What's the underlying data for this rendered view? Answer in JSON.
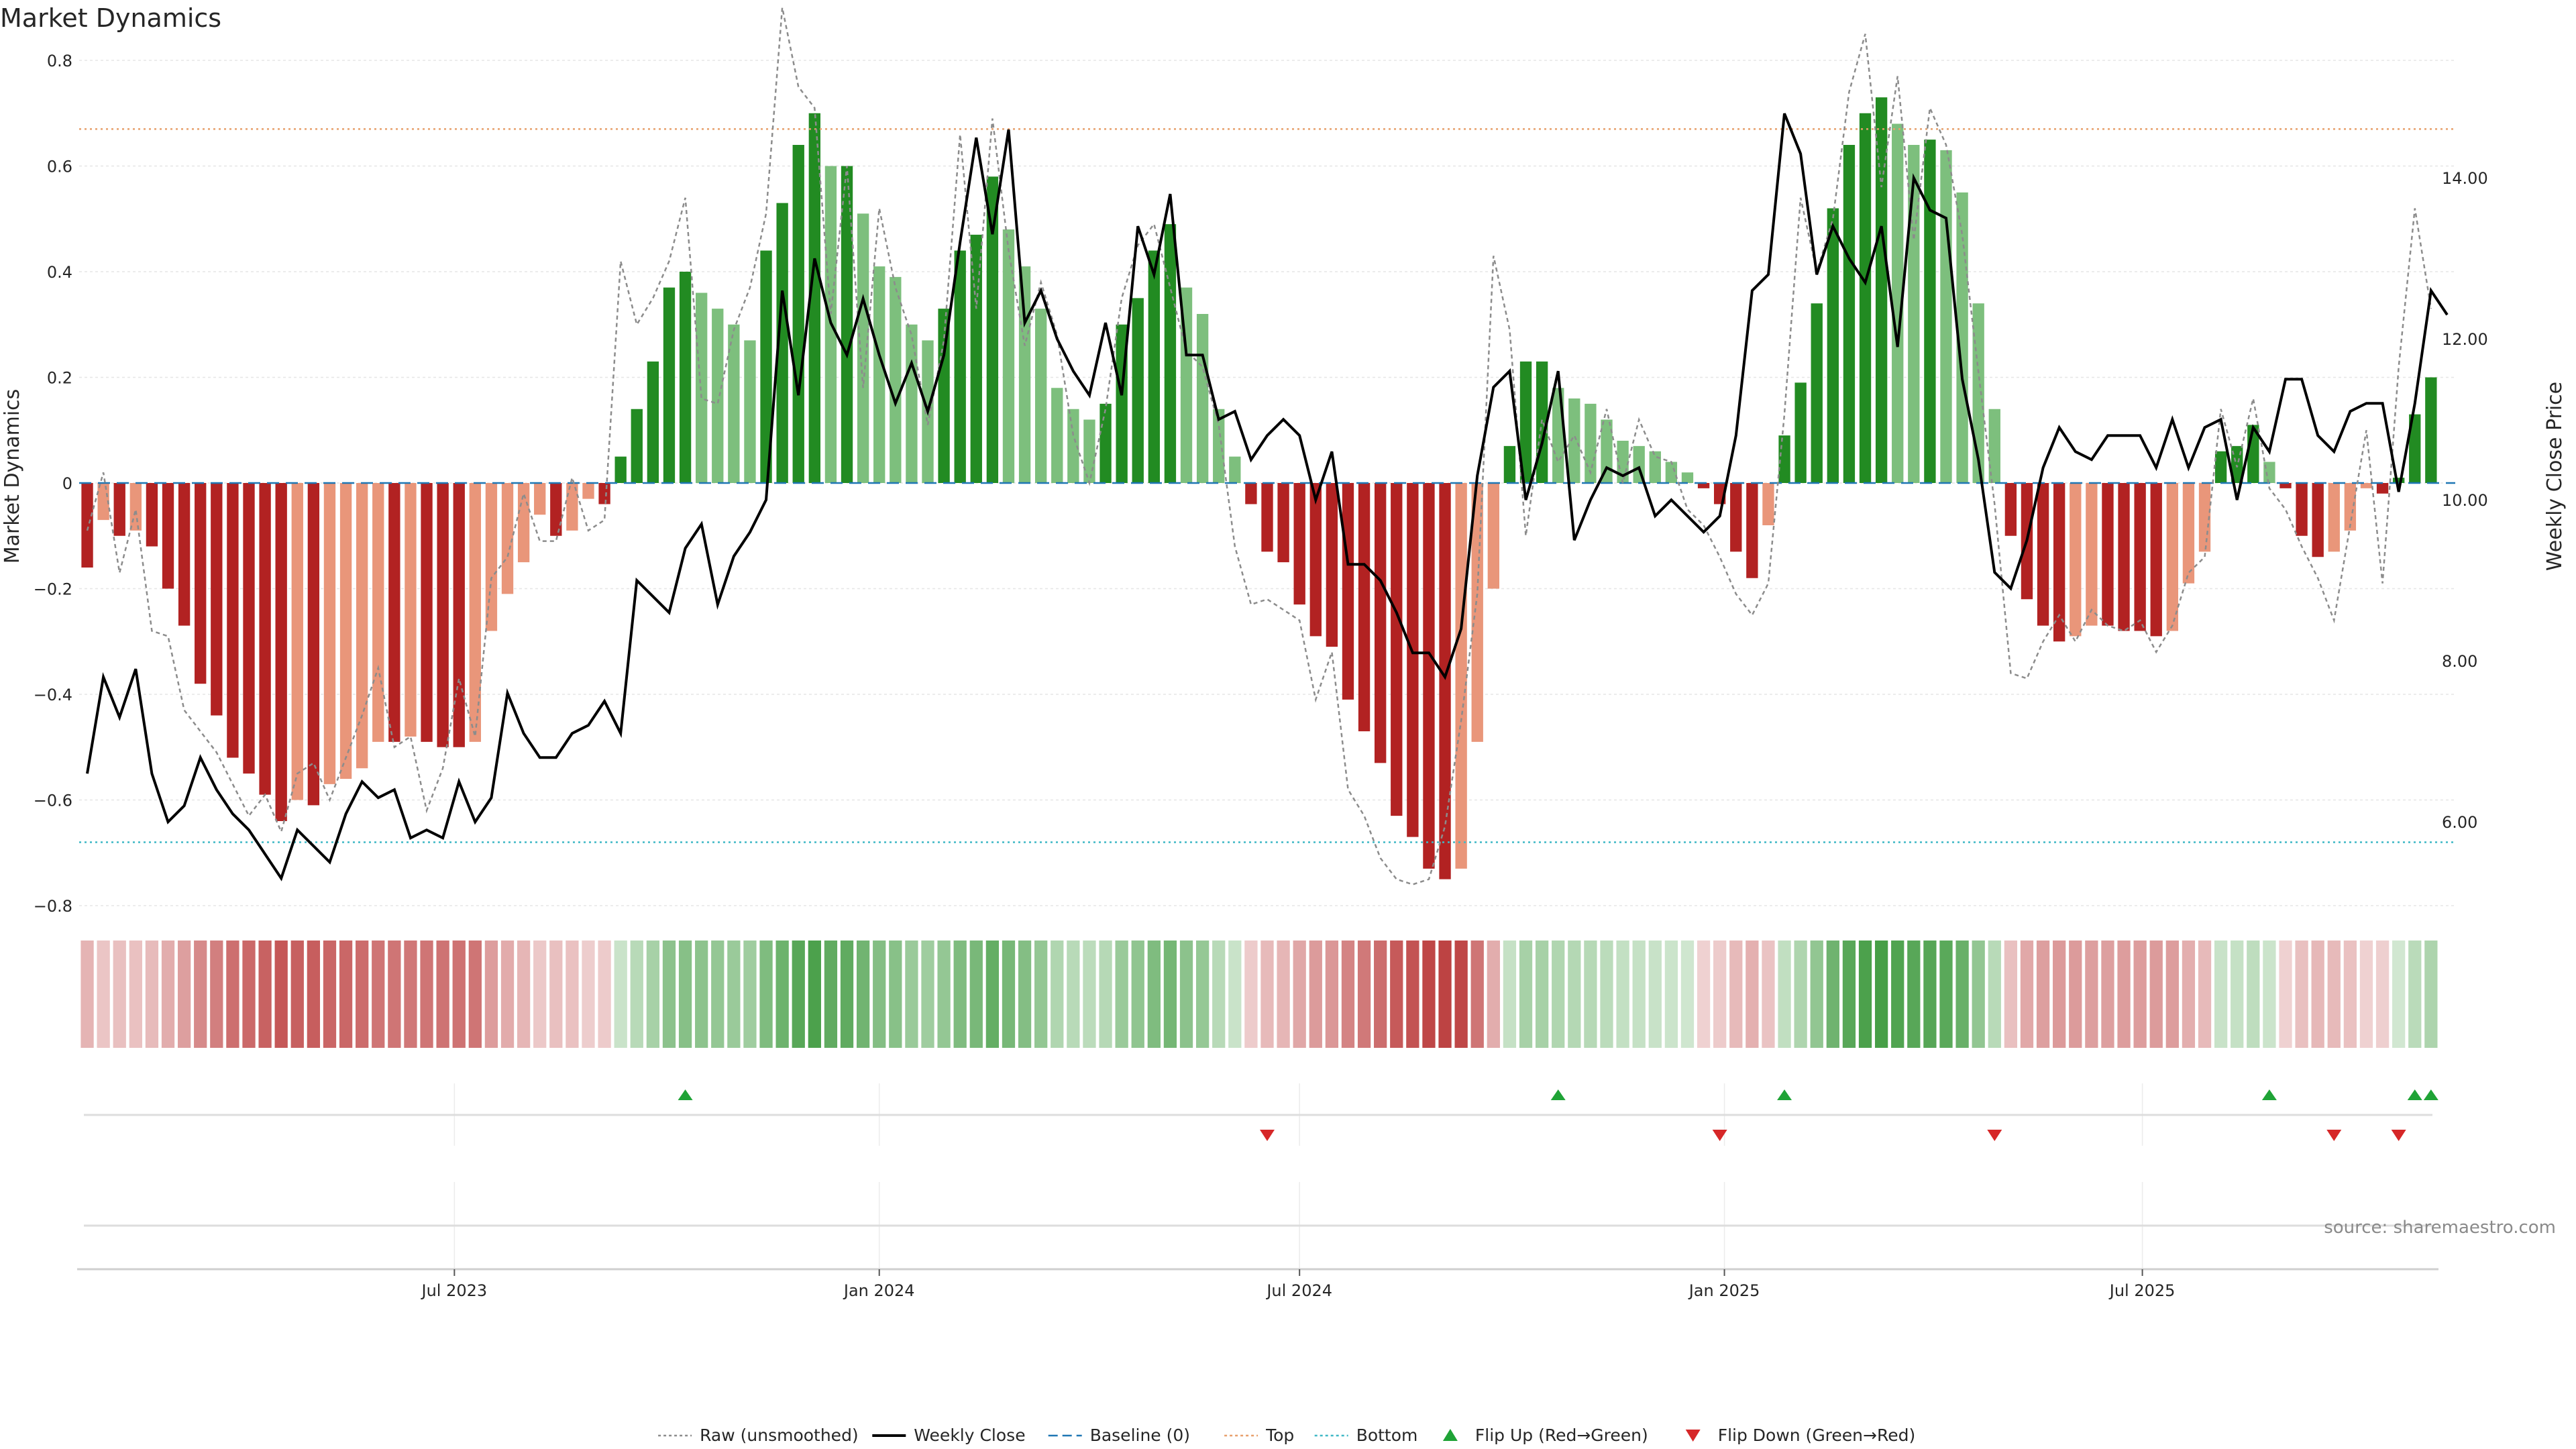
{
  "chart_data": {
    "type": "bar",
    "title": "Market Dynamics",
    "ylabel_left": "Market Dynamics",
    "ylabel_right": "Weekly Close Price",
    "source": "source: sharemaestro.com",
    "ylim_left": [
      -0.8,
      0.8
    ],
    "yticks_left": [
      0.8,
      0.6,
      0.4,
      0.2,
      0,
      -0.2,
      -0.4,
      -0.6,
      -0.8
    ],
    "ytick_labels_left": [
      "0.8",
      "0.6",
      "0.4",
      "0.2",
      "0",
      "−0.2",
      "−0.4",
      "−0.6",
      "−0.8"
    ],
    "ylim_right": [
      4.96,
      15.46
    ],
    "yticks_right": [
      6,
      8,
      10,
      12,
      14
    ],
    "ytick_labels_right": [
      "6.00",
      "8.00",
      "10.00",
      "12.00",
      "14.00"
    ],
    "x_dates": [
      "2023-01-23",
      "2023-01-30",
      "2023-02-06",
      "2023-02-13",
      "2023-02-20",
      "2023-02-27",
      "2023-03-06",
      "2023-03-13",
      "2023-03-20",
      "2023-03-27",
      "2023-04-03",
      "2023-04-10",
      "2023-04-17",
      "2023-04-24",
      "2023-05-01",
      "2023-05-08",
      "2023-05-15",
      "2023-05-22",
      "2023-05-29",
      "2023-06-05",
      "2023-06-12",
      "2023-06-19",
      "2023-06-26",
      "2023-07-03",
      "2023-07-10",
      "2023-07-17",
      "2023-07-24",
      "2023-07-31",
      "2023-08-07",
      "2023-08-14",
      "2023-08-21",
      "2023-08-28",
      "2023-09-04",
      "2023-09-11",
      "2023-09-18",
      "2023-09-25",
      "2023-10-02",
      "2023-10-09",
      "2023-10-16",
      "2023-10-23",
      "2023-10-30",
      "2023-11-06",
      "2023-11-13",
      "2023-11-20",
      "2023-11-27",
      "2023-12-04",
      "2023-12-11",
      "2023-12-18",
      "2023-12-25",
      "2024-01-01",
      "2024-01-08",
      "2024-01-15",
      "2024-01-22",
      "2024-01-29",
      "2024-02-05",
      "2024-02-12",
      "2024-02-19",
      "2024-02-26",
      "2024-03-04",
      "2024-03-11",
      "2024-03-18",
      "2024-03-25",
      "2024-04-01",
      "2024-04-08",
      "2024-04-15",
      "2024-04-22",
      "2024-04-29",
      "2024-05-06",
      "2024-05-13",
      "2024-05-20",
      "2024-05-27",
      "2024-06-03",
      "2024-06-10",
      "2024-06-17",
      "2024-06-24",
      "2024-07-01",
      "2024-07-08",
      "2024-07-15",
      "2024-07-22",
      "2024-07-29",
      "2024-08-05",
      "2024-08-12",
      "2024-08-19",
      "2024-08-26",
      "2024-09-02",
      "2024-09-09",
      "2024-09-16",
      "2024-09-23",
      "2024-09-30",
      "2024-10-07",
      "2024-10-14",
      "2024-10-21",
      "2024-10-28",
      "2024-11-04",
      "2024-11-11",
      "2024-11-18",
      "2024-11-25",
      "2024-12-02",
      "2024-12-09",
      "2024-12-16",
      "2024-12-23",
      "2024-12-30",
      "2025-01-06",
      "2025-01-13",
      "2025-01-20",
      "2025-01-27",
      "2025-02-03",
      "2025-02-10",
      "2025-02-17",
      "2025-02-24",
      "2025-03-03",
      "2025-03-10",
      "2025-03-17",
      "2025-03-24",
      "2025-03-31",
      "2025-04-07",
      "2025-04-14",
      "2025-04-21",
      "2025-04-28",
      "2025-05-05",
      "2025-05-12",
      "2025-05-19",
      "2025-05-26",
      "2025-06-02",
      "2025-06-09",
      "2025-06-16",
      "2025-06-23",
      "2025-06-30",
      "2025-07-07",
      "2025-07-14",
      "2025-07-21",
      "2025-07-28",
      "2025-08-04",
      "2025-08-11",
      "2025-08-18",
      "2025-08-25",
      "2025-09-01",
      "2025-09-08",
      "2025-09-15",
      "2025-09-22",
      "2025-09-29",
      "2025-10-06",
      "2025-10-13",
      "2025-10-20",
      "2025-10-27",
      "2025-11-03",
      "2025-11-10"
    ],
    "x_ticks": [
      {
        "date": "2023-07-01",
        "label": "Jul 2023"
      },
      {
        "date": "2024-01-01",
        "label": "Jan 2024"
      },
      {
        "date": "2024-07-01",
        "label": "Jul 2024"
      },
      {
        "date": "2025-01-01",
        "label": "Jan 2025"
      },
      {
        "date": "2025-07-01",
        "label": "Jul 2025"
      }
    ],
    "series": [
      {
        "name": "Market Dynamics",
        "kind": "bar",
        "values": [
          -0.16,
          -0.07,
          -0.1,
          -0.09,
          -0.12,
          -0.2,
          -0.27,
          -0.38,
          -0.44,
          -0.52,
          -0.55,
          -0.59,
          -0.64,
          -0.6,
          -0.61,
          -0.57,
          -0.56,
          -0.54,
          -0.49,
          -0.49,
          -0.48,
          -0.49,
          -0.5,
          -0.5,
          -0.49,
          -0.28,
          -0.21,
          -0.15,
          -0.06,
          -0.1,
          -0.09,
          -0.03,
          -0.04,
          0.05,
          0.14,
          0.23,
          0.37,
          0.4,
          0.36,
          0.33,
          0.3,
          0.27,
          0.44,
          0.53,
          0.64,
          0.7,
          0.6,
          0.6,
          0.51,
          0.41,
          0.39,
          0.3,
          0.27,
          0.33,
          0.44,
          0.47,
          0.58,
          0.48,
          0.41,
          0.33,
          0.18,
          0.14,
          0.12,
          0.15,
          0.3,
          0.35,
          0.44,
          0.49,
          0.37,
          0.32,
          0.14,
          0.05,
          -0.04,
          -0.13,
          -0.15,
          -0.23,
          -0.29,
          -0.31,
          -0.41,
          -0.47,
          -0.53,
          -0.63,
          -0.67,
          -0.73,
          -0.75,
          -0.73,
          -0.49,
          -0.2,
          0.07,
          0.23,
          0.23,
          0.18,
          0.16,
          0.15,
          0.12,
          0.08,
          0.07,
          0.06,
          0.04,
          0.02,
          -0.01,
          -0.04,
          -0.13,
          -0.18,
          -0.08,
          0.09,
          0.19,
          0.34,
          0.52,
          0.64,
          0.7,
          0.73,
          0.68,
          0.64,
          0.65,
          0.63,
          0.55,
          0.34,
          0.14,
          -0.1,
          -0.22,
          -0.27,
          -0.3,
          -0.29,
          -0.27,
          -0.27,
          -0.28,
          -0.28,
          -0.29,
          -0.28,
          -0.19,
          -0.13,
          0.06,
          0.07,
          0.11,
          0.04,
          -0.01,
          -0.1,
          -0.14,
          -0.13,
          -0.09,
          -0.01,
          -0.02,
          0.01,
          0.13,
          0.2
        ]
      },
      {
        "name": "Raw (unsmoothed)",
        "kind": "line",
        "values": [
          -0.09,
          0.02,
          -0.17,
          -0.05,
          -0.28,
          -0.29,
          -0.43,
          -0.47,
          -0.51,
          -0.57,
          -0.63,
          -0.59,
          -0.66,
          -0.55,
          -0.53,
          -0.6,
          -0.52,
          -0.44,
          -0.35,
          -0.5,
          -0.48,
          -0.62,
          -0.54,
          -0.37,
          -0.48,
          -0.18,
          -0.14,
          -0.02,
          -0.11,
          -0.11,
          0.01,
          -0.09,
          -0.07,
          0.42,
          0.3,
          0.35,
          0.42,
          0.54,
          0.16,
          0.15,
          0.29,
          0.37,
          0.51,
          0.9,
          0.75,
          0.71,
          0.32,
          0.6,
          0.18,
          0.52,
          0.37,
          0.28,
          0.11,
          0.27,
          0.66,
          0.33,
          0.69,
          0.44,
          0.26,
          0.38,
          0.28,
          0.09,
          0.0,
          0.14,
          0.35,
          0.45,
          0.49,
          0.37,
          0.25,
          0.22,
          0.11,
          -0.12,
          -0.23,
          -0.22,
          -0.24,
          -0.26,
          -0.41,
          -0.32,
          -0.58,
          -0.63,
          -0.71,
          -0.75,
          -0.76,
          -0.75,
          -0.65,
          -0.45,
          -0.21,
          0.43,
          0.29,
          -0.1,
          0.12,
          0.04,
          0.09,
          0.02,
          0.14,
          0.0,
          0.12,
          0.05,
          0.04,
          -0.05,
          -0.08,
          -0.14,
          -0.21,
          -0.25,
          -0.19,
          0.13,
          0.54,
          0.4,
          0.5,
          0.74,
          0.85,
          0.56,
          0.77,
          0.46,
          0.71,
          0.64,
          0.47,
          0.21,
          -0.04,
          -0.36,
          -0.37,
          -0.3,
          -0.25,
          -0.3,
          -0.24,
          -0.27,
          -0.28,
          -0.26,
          -0.32,
          -0.27,
          -0.17,
          -0.14,
          0.14,
          0.03,
          0.16,
          -0.01,
          -0.05,
          -0.12,
          -0.18,
          -0.26,
          -0.08,
          0.1,
          -0.19,
          0.22,
          0.52,
          0.33
        ]
      },
      {
        "name": "Weekly Close",
        "kind": "line",
        "axis": "right",
        "values": [
          6.6,
          7.8,
          7.3,
          7.9,
          6.6,
          6.0,
          6.2,
          6.8,
          6.4,
          6.1,
          5.9,
          5.6,
          5.3,
          5.9,
          5.7,
          5.5,
          6.1,
          6.5,
          6.3,
          6.4,
          5.8,
          5.9,
          5.8,
          6.5,
          6.0,
          6.3,
          7.6,
          7.1,
          6.8,
          6.8,
          7.1,
          7.2,
          7.5,
          7.1,
          9.0,
          8.8,
          8.6,
          9.4,
          9.7,
          8.7,
          9.3,
          9.6,
          10.0,
          12.6,
          11.3,
          13.0,
          12.2,
          11.8,
          12.5,
          11.8,
          11.2,
          11.7,
          11.1,
          11.8,
          13.2,
          14.5,
          13.3,
          14.6,
          12.2,
          12.6,
          12.0,
          11.6,
          11.3,
          12.2,
          11.3,
          13.4,
          12.8,
          13.8,
          11.8,
          11.8,
          11.0,
          11.1,
          10.5,
          10.8,
          11.0,
          10.8,
          10.0,
          10.6,
          9.2,
          9.2,
          9.0,
          8.6,
          8.1,
          8.1,
          7.8,
          8.4,
          10.3,
          11.4,
          11.6,
          10.0,
          10.7,
          11.6,
          9.5,
          10.0,
          10.4,
          10.3,
          10.4,
          9.8,
          10.0,
          9.8,
          9.6,
          9.8,
          10.8,
          12.6,
          12.8,
          14.8,
          14.3,
          12.8,
          13.4,
          13.0,
          12.7,
          13.4,
          11.9,
          14.0,
          13.6,
          13.5,
          11.5,
          10.5,
          9.1,
          8.9,
          9.5,
          10.4,
          10.9,
          10.6,
          10.5,
          10.8,
          10.8,
          10.8,
          10.4,
          11.0,
          10.4,
          10.9,
          11.0,
          10.0,
          10.9,
          10.6,
          11.5,
          11.5,
          10.8,
          10.6,
          11.1,
          11.2,
          11.2,
          10.1,
          11.2,
          12.6,
          12.3
        ]
      },
      {
        "name": "Baseline (0)",
        "kind": "hline",
        "value": 0
      },
      {
        "name": "Top",
        "kind": "hline",
        "value": 0.67
      },
      {
        "name": "Bottom",
        "kind": "hline",
        "value": -0.68
      }
    ],
    "flip_up_dates": [
      "2023-10-09",
      "2024-10-21",
      "2025-01-27",
      "2025-08-25",
      "2025-10-27",
      "2025-11-03"
    ],
    "flip_down_dates": [
      "2024-06-17",
      "2024-12-30",
      "2025-04-28",
      "2025-09-22",
      "2025-10-20"
    ],
    "legend": {
      "position": "bottom-center",
      "items": [
        {
          "label": "Raw (unsmoothed)",
          "style": "dotted-line",
          "color": "#8c8c8c"
        },
        {
          "label": "Weekly Close",
          "style": "line",
          "color": "#000000"
        },
        {
          "label": "Baseline (0)",
          "style": "dashed-line",
          "color": "#1f77b4"
        },
        {
          "label": "Top",
          "style": "dotted-line",
          "color": "#e8a06c"
        },
        {
          "label": "Bottom",
          "style": "dotted-line",
          "color": "#3fb8c6"
        },
        {
          "label": "Flip Up (Red→Green)",
          "style": "triangle-up",
          "color": "#1fa336"
        },
        {
          "label": "Flip Down (Green→Red)",
          "style": "triangle-down",
          "color": "#d62728"
        }
      ]
    },
    "grid": true,
    "colors": {
      "strong_green": "#228b22",
      "light_green": "#7dbf7d",
      "strong_red": "#b22222",
      "light_red": "#e9967a",
      "raw": "#8c8c8c",
      "close": "#000000",
      "baseline": "#1f77b4",
      "top": "#e8a06c",
      "bottom": "#3fb8c6",
      "flip_up": "#1fa336",
      "flip_down": "#d62728"
    }
  }
}
